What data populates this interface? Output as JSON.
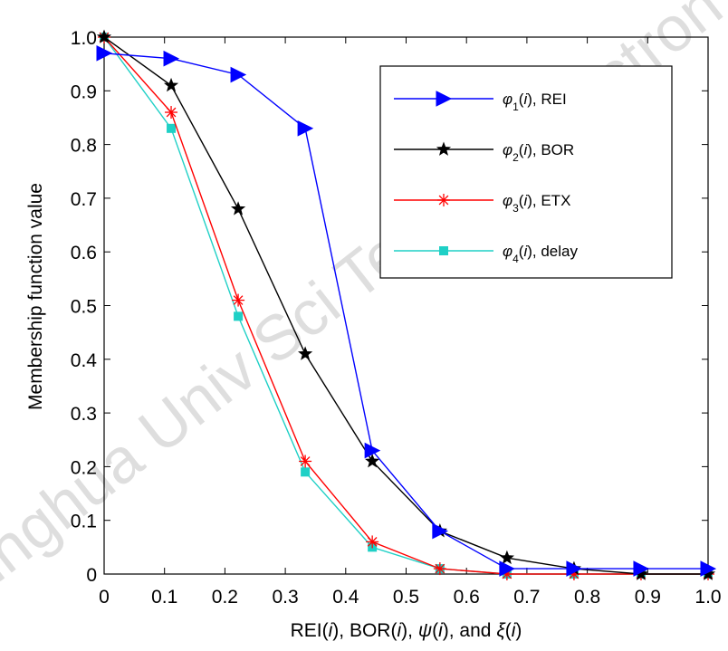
{
  "chart_data": {
    "type": "line",
    "xlabel": "REI(i), BOR(i), ψ(i), and ξ(i)",
    "ylabel": "Membership function value",
    "xlim": [
      0,
      1.0
    ],
    "ylim": [
      0,
      1.0
    ],
    "xticks": [
      "0",
      "0.1",
      "0.2",
      "0.3",
      "0.4",
      "0.5",
      "0.6",
      "0.7",
      "0.8",
      "0.9",
      "1.0"
    ],
    "yticks": [
      "0",
      "0.1",
      "0.2",
      "0.3",
      "0.4",
      "0.5",
      "0.6",
      "0.7",
      "0.8",
      "0.9",
      "1.0"
    ],
    "grid": false,
    "legend_position": "top-right",
    "x": [
      0,
      0.111,
      0.222,
      0.333,
      0.444,
      0.556,
      0.667,
      0.778,
      0.889,
      1.0
    ],
    "series": [
      {
        "name": "φ1(i), REI",
        "legend_parts": [
          "φ",
          "1",
          "(",
          "i",
          "), REI"
        ],
        "color": "#0000ff",
        "marker": "triangle-right",
        "values": [
          0.97,
          0.96,
          0.93,
          0.83,
          0.23,
          0.08,
          0.01,
          0.01,
          0.01,
          0.01
        ]
      },
      {
        "name": "φ2(i), BOR",
        "legend_parts": [
          "φ",
          "2",
          "(",
          "i",
          "), BOR"
        ],
        "color": "#000000",
        "marker": "star",
        "values": [
          1.0,
          0.91,
          0.68,
          0.41,
          0.21,
          0.08,
          0.03,
          0.01,
          0.0,
          0.0
        ]
      },
      {
        "name": "φ3(i), ETX",
        "legend_parts": [
          "φ",
          "3",
          "(",
          "i",
          "), ETX"
        ],
        "color": "#ff0000",
        "marker": "asterisk",
        "values": [
          1.0,
          0.86,
          0.51,
          0.21,
          0.06,
          0.01,
          0.0,
          0.0,
          0.0,
          0.0
        ]
      },
      {
        "name": "φ4(i), delay",
        "legend_parts": [
          "φ",
          "4",
          "(",
          "i",
          "), delay"
        ],
        "color": "#1fd0c6",
        "marker": "square",
        "values": [
          1.0,
          0.83,
          0.48,
          0.19,
          0.05,
          0.01,
          0.0,
          0.0,
          0.0,
          0.0
        ]
      }
    ]
  },
  "watermark": "J. Tsinghua Univ Sci Technol Electron Eng"
}
